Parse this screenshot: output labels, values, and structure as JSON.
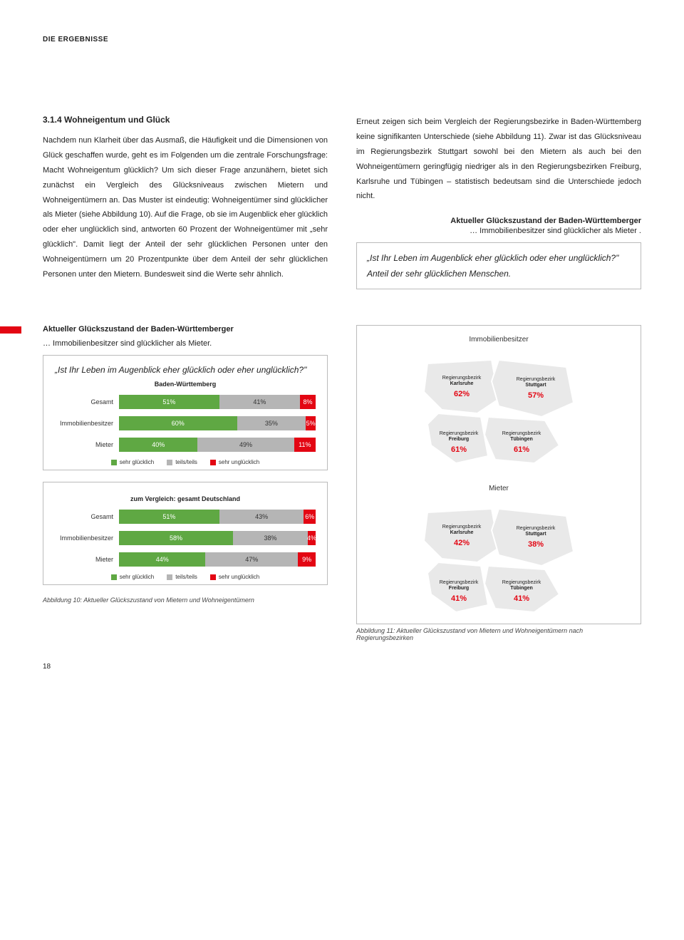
{
  "header": "DIE ERGEBNISSE",
  "section_heading": "3.1.4 Wohneigentum und Glück",
  "left_paragraph": "Nachdem nun Klarheit über das Ausmaß, die Häufigkeit und die Dimensionen von Glück geschaffen wurde, geht es im Folgenden um die zentrale Forschungsfrage: Macht Wohneigentum glücklich? Um sich dieser Frage anzunähern, bietet sich zunächst ein Vergleich des Glücksniveaus zwischen Mietern und Wohneigentümern an. Das Muster ist eindeutig: Wohneigentümer sind glücklicher als Mieter (siehe Abbildung 10). Auf die Frage, ob sie im Augenblick eher glücklich oder eher unglücklich sind, antworten 60 Prozent der Wohneigentümer mit „sehr glücklich\". Damit liegt der Anteil der sehr glücklichen Personen unter den Wohneigentümern um 20 Prozentpunkte über dem Anteil der sehr glücklichen Personen unter den Mietern. Bundesweit sind die Werte sehr ähnlich.",
  "right_paragraph": "Erneut zeigen sich beim Vergleich der Regierungsbezirke in Baden-Württemberg keine signifikanten Unterschiede (siehe Abbildung 11). Zwar ist das Glücksniveau im Regierungsbezirk Stuttgart sowohl bei den Mietern als auch bei den Wohneigentümern geringfügig niedriger als in den Regierungsbezirken Freiburg, Karlsruhe und Tübingen – statistisch bedeutsam sind die Unterschiede jedoch nicht.",
  "right_chart_title": "Aktueller Glückszustand der Baden-Württemberger",
  "right_chart_sub": "… Immobilienbesitzer sind glücklicher als Mieter .",
  "quote_q": "„Ist Ihr Leben im Augenblick eher glücklich oder eher unglücklich?\"",
  "quote_a": "Anteil der sehr glücklichen Menschen.",
  "left_chart_title": "Aktueller Glückszustand der Baden-Württemberger",
  "left_chart_sub": "… Immobilienbesitzer sind glücklicher als Mieter.",
  "chart1": {
    "question": "„Ist Ihr Leben im Augenblick eher glücklich oder eher unglücklich?\"",
    "region": "Baden-Württemberg",
    "rows": [
      {
        "label": "Gesamt",
        "green": 51,
        "grey": 41,
        "red": 8
      },
      {
        "label": "Immobilienbesitzer",
        "green": 60,
        "grey": 35,
        "red": 5
      },
      {
        "label": "Mieter",
        "green": 40,
        "grey": 49,
        "red": 11
      }
    ],
    "legend": [
      "sehr glücklich",
      "teils/teils",
      "sehr unglücklich"
    ],
    "colors": {
      "green": "#5fa843",
      "grey": "#b5b5b5",
      "red": "#e30613"
    }
  },
  "chart2": {
    "region": "zum Vergleich: gesamt Deutschland",
    "rows": [
      {
        "label": "Gesamt",
        "green": 51,
        "grey": 43,
        "red": 6
      },
      {
        "label": "Immobilienbesitzer",
        "green": 58,
        "grey": 38,
        "red": 4
      },
      {
        "label": "Mieter",
        "green": 44,
        "grey": 47,
        "red": 9
      }
    ],
    "legend": [
      "sehr glücklich",
      "teils/teils",
      "sehr unglücklich"
    ]
  },
  "caption_left": "Abbildung 10: Aktueller Glückszustand von Mietern und Wohneigentümern",
  "maps": {
    "owner_heading": "Immobilienbesitzer",
    "renter_heading": "Mieter",
    "region_label_prefix": "Regierungsbezirk",
    "owner": {
      "karlsruhe": "62%",
      "stuttgart": "57%",
      "freiburg": "61%",
      "tuebingen": "61%"
    },
    "renter": {
      "karlsruhe": "42%",
      "stuttgart": "38%",
      "freiburg": "41%",
      "tuebingen": "41%"
    },
    "region_names": {
      "karlsruhe": "Karlsruhe",
      "stuttgart": "Stuttgart",
      "freiburg": "Freiburg",
      "tuebingen": "Tübingen"
    },
    "fill": "#e9e9e9",
    "stroke": "#ffffff"
  },
  "caption_right": "Abbildung 11: Aktueller Glückszustand von Mietern und Wohneigentümern nach Regierungsbezirken",
  "page_number": "18"
}
